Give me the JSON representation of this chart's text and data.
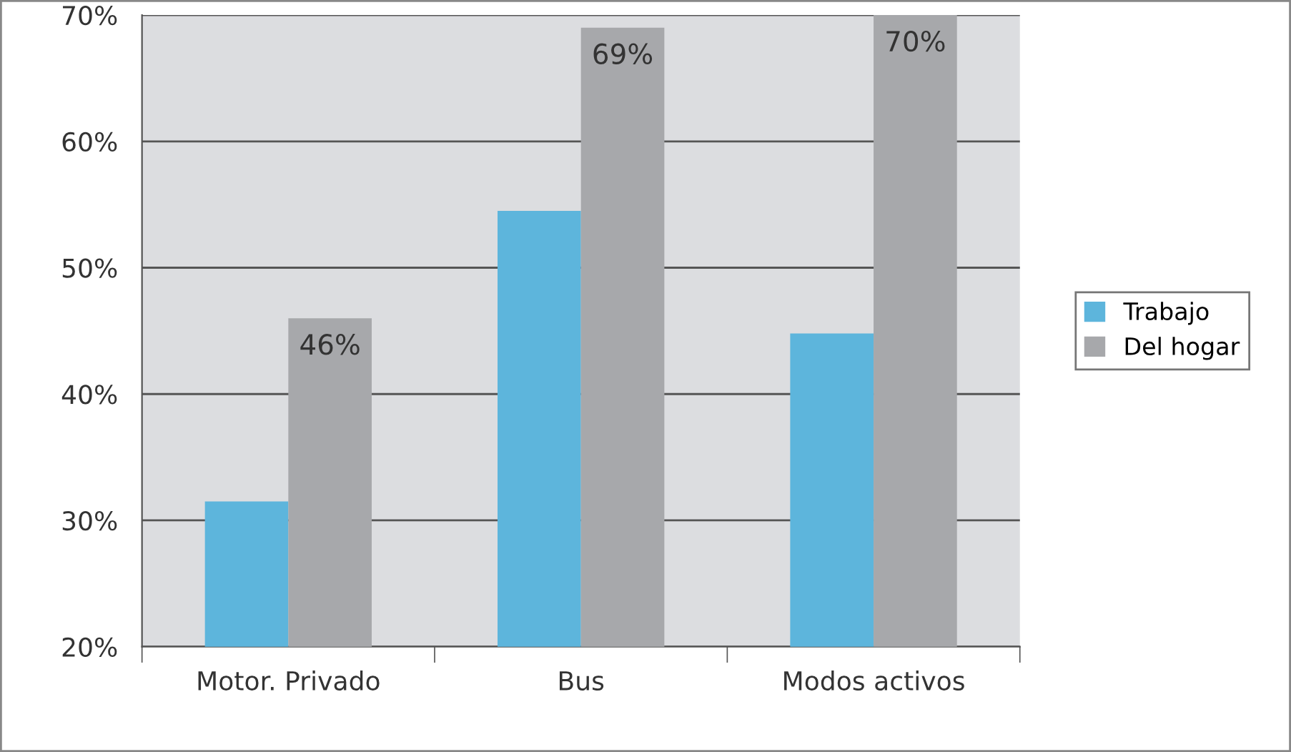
{
  "chart_data": {
    "type": "bar",
    "categories": [
      "Motor. Privado",
      "Bus",
      "Modos activos"
    ],
    "series": [
      {
        "name": "Trabajo",
        "color": "#5db5dc",
        "values": [
          31.5,
          54.5,
          44.8
        ]
      },
      {
        "name": "Del hogar",
        "color": "#a7a8ab",
        "values": [
          46,
          69,
          70
        ],
        "value_labels": [
          "46%",
          "69%",
          "70%"
        ]
      }
    ],
    "ylim": [
      20,
      70
    ],
    "yticks": [
      {
        "value": 20,
        "label": "20%"
      },
      {
        "value": 30,
        "label": "30%"
      },
      {
        "value": 40,
        "label": "40%"
      },
      {
        "value": 50,
        "label": "50%"
      },
      {
        "value": 60,
        "label": "60%"
      },
      {
        "value": 70,
        "label": "70%"
      }
    ],
    "grid": "y",
    "legend": "right"
  }
}
